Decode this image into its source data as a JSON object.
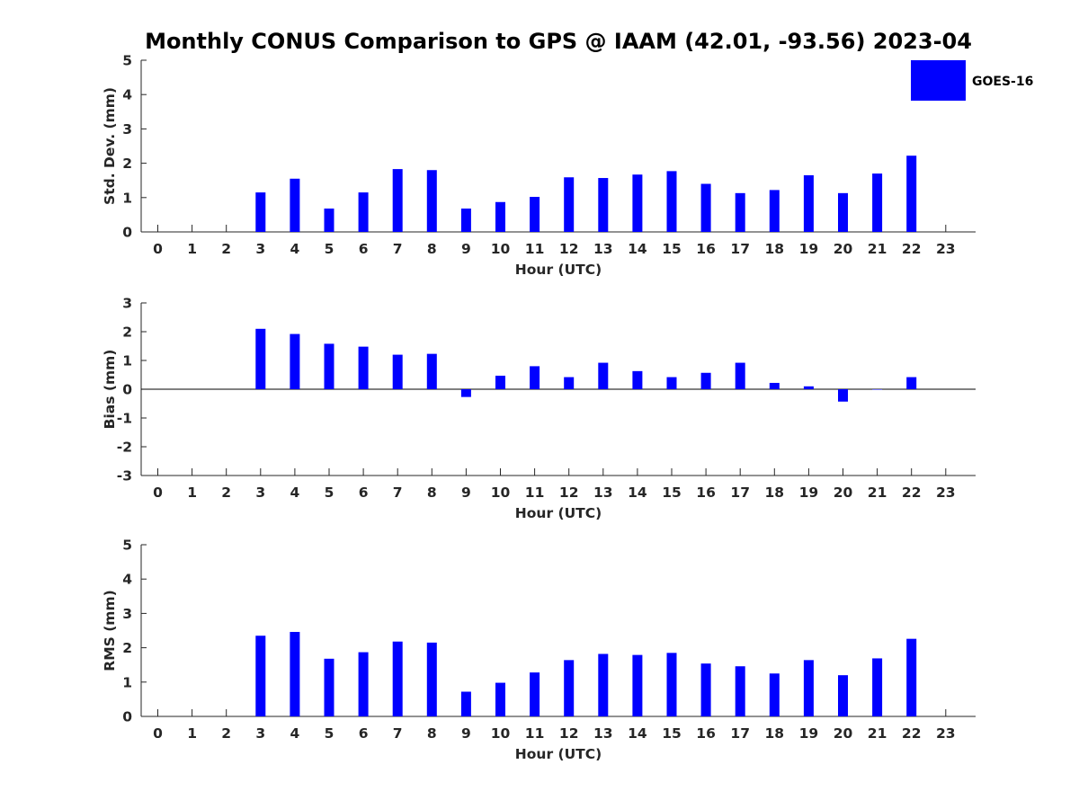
{
  "colors": {
    "bar": "#0000ff",
    "axis": "#262626",
    "background": "#ffffff"
  },
  "chart_data": {
    "type": "bar",
    "title": "Monthly CONUS Comparison to GPS @ IAAM (42.01, -93.56) 2023-04",
    "legend": {
      "label": "GOES-16",
      "placement": "top-right"
    },
    "categories": [
      0,
      1,
      2,
      3,
      4,
      5,
      6,
      7,
      8,
      9,
      10,
      11,
      12,
      13,
      14,
      15,
      16,
      17,
      18,
      19,
      20,
      21,
      22,
      23
    ],
    "panels": [
      {
        "name": "std-dev",
        "xlabel": "Hour (UTC)",
        "ylabel": "Std. Dev. (mm)",
        "ylim": [
          0,
          5
        ],
        "yticks": [
          0,
          1,
          2,
          3,
          4,
          5
        ],
        "values": [
          null,
          null,
          null,
          1.15,
          1.55,
          0.68,
          1.15,
          1.83,
          1.8,
          0.68,
          0.87,
          1.02,
          1.59,
          1.57,
          1.67,
          1.77,
          1.4,
          1.13,
          1.22,
          1.65,
          1.13,
          1.7,
          2.22,
          null
        ]
      },
      {
        "name": "bias",
        "xlabel": "Hour (UTC)",
        "ylabel": "Bias (mm)",
        "ylim": [
          -3,
          3
        ],
        "yticks": [
          -3,
          -2,
          -1,
          0,
          1,
          2,
          3
        ],
        "values": [
          null,
          null,
          null,
          2.1,
          1.92,
          1.58,
          1.48,
          1.2,
          1.23,
          -0.27,
          0.47,
          0.8,
          0.42,
          0.92,
          0.63,
          0.42,
          0.57,
          0.92,
          0.22,
          0.1,
          -0.43,
          0.0,
          0.42,
          null
        ]
      },
      {
        "name": "rms",
        "xlabel": "Hour (UTC)",
        "ylabel": "RMS (mm)",
        "ylim": [
          0,
          5
        ],
        "yticks": [
          0,
          1,
          2,
          3,
          4,
          5
        ],
        "values": [
          null,
          null,
          null,
          2.35,
          2.46,
          1.68,
          1.87,
          2.18,
          2.15,
          0.72,
          0.98,
          1.28,
          1.64,
          1.82,
          1.79,
          1.85,
          1.54,
          1.46,
          1.25,
          1.64,
          1.2,
          1.69,
          2.26,
          null
        ]
      }
    ]
  }
}
